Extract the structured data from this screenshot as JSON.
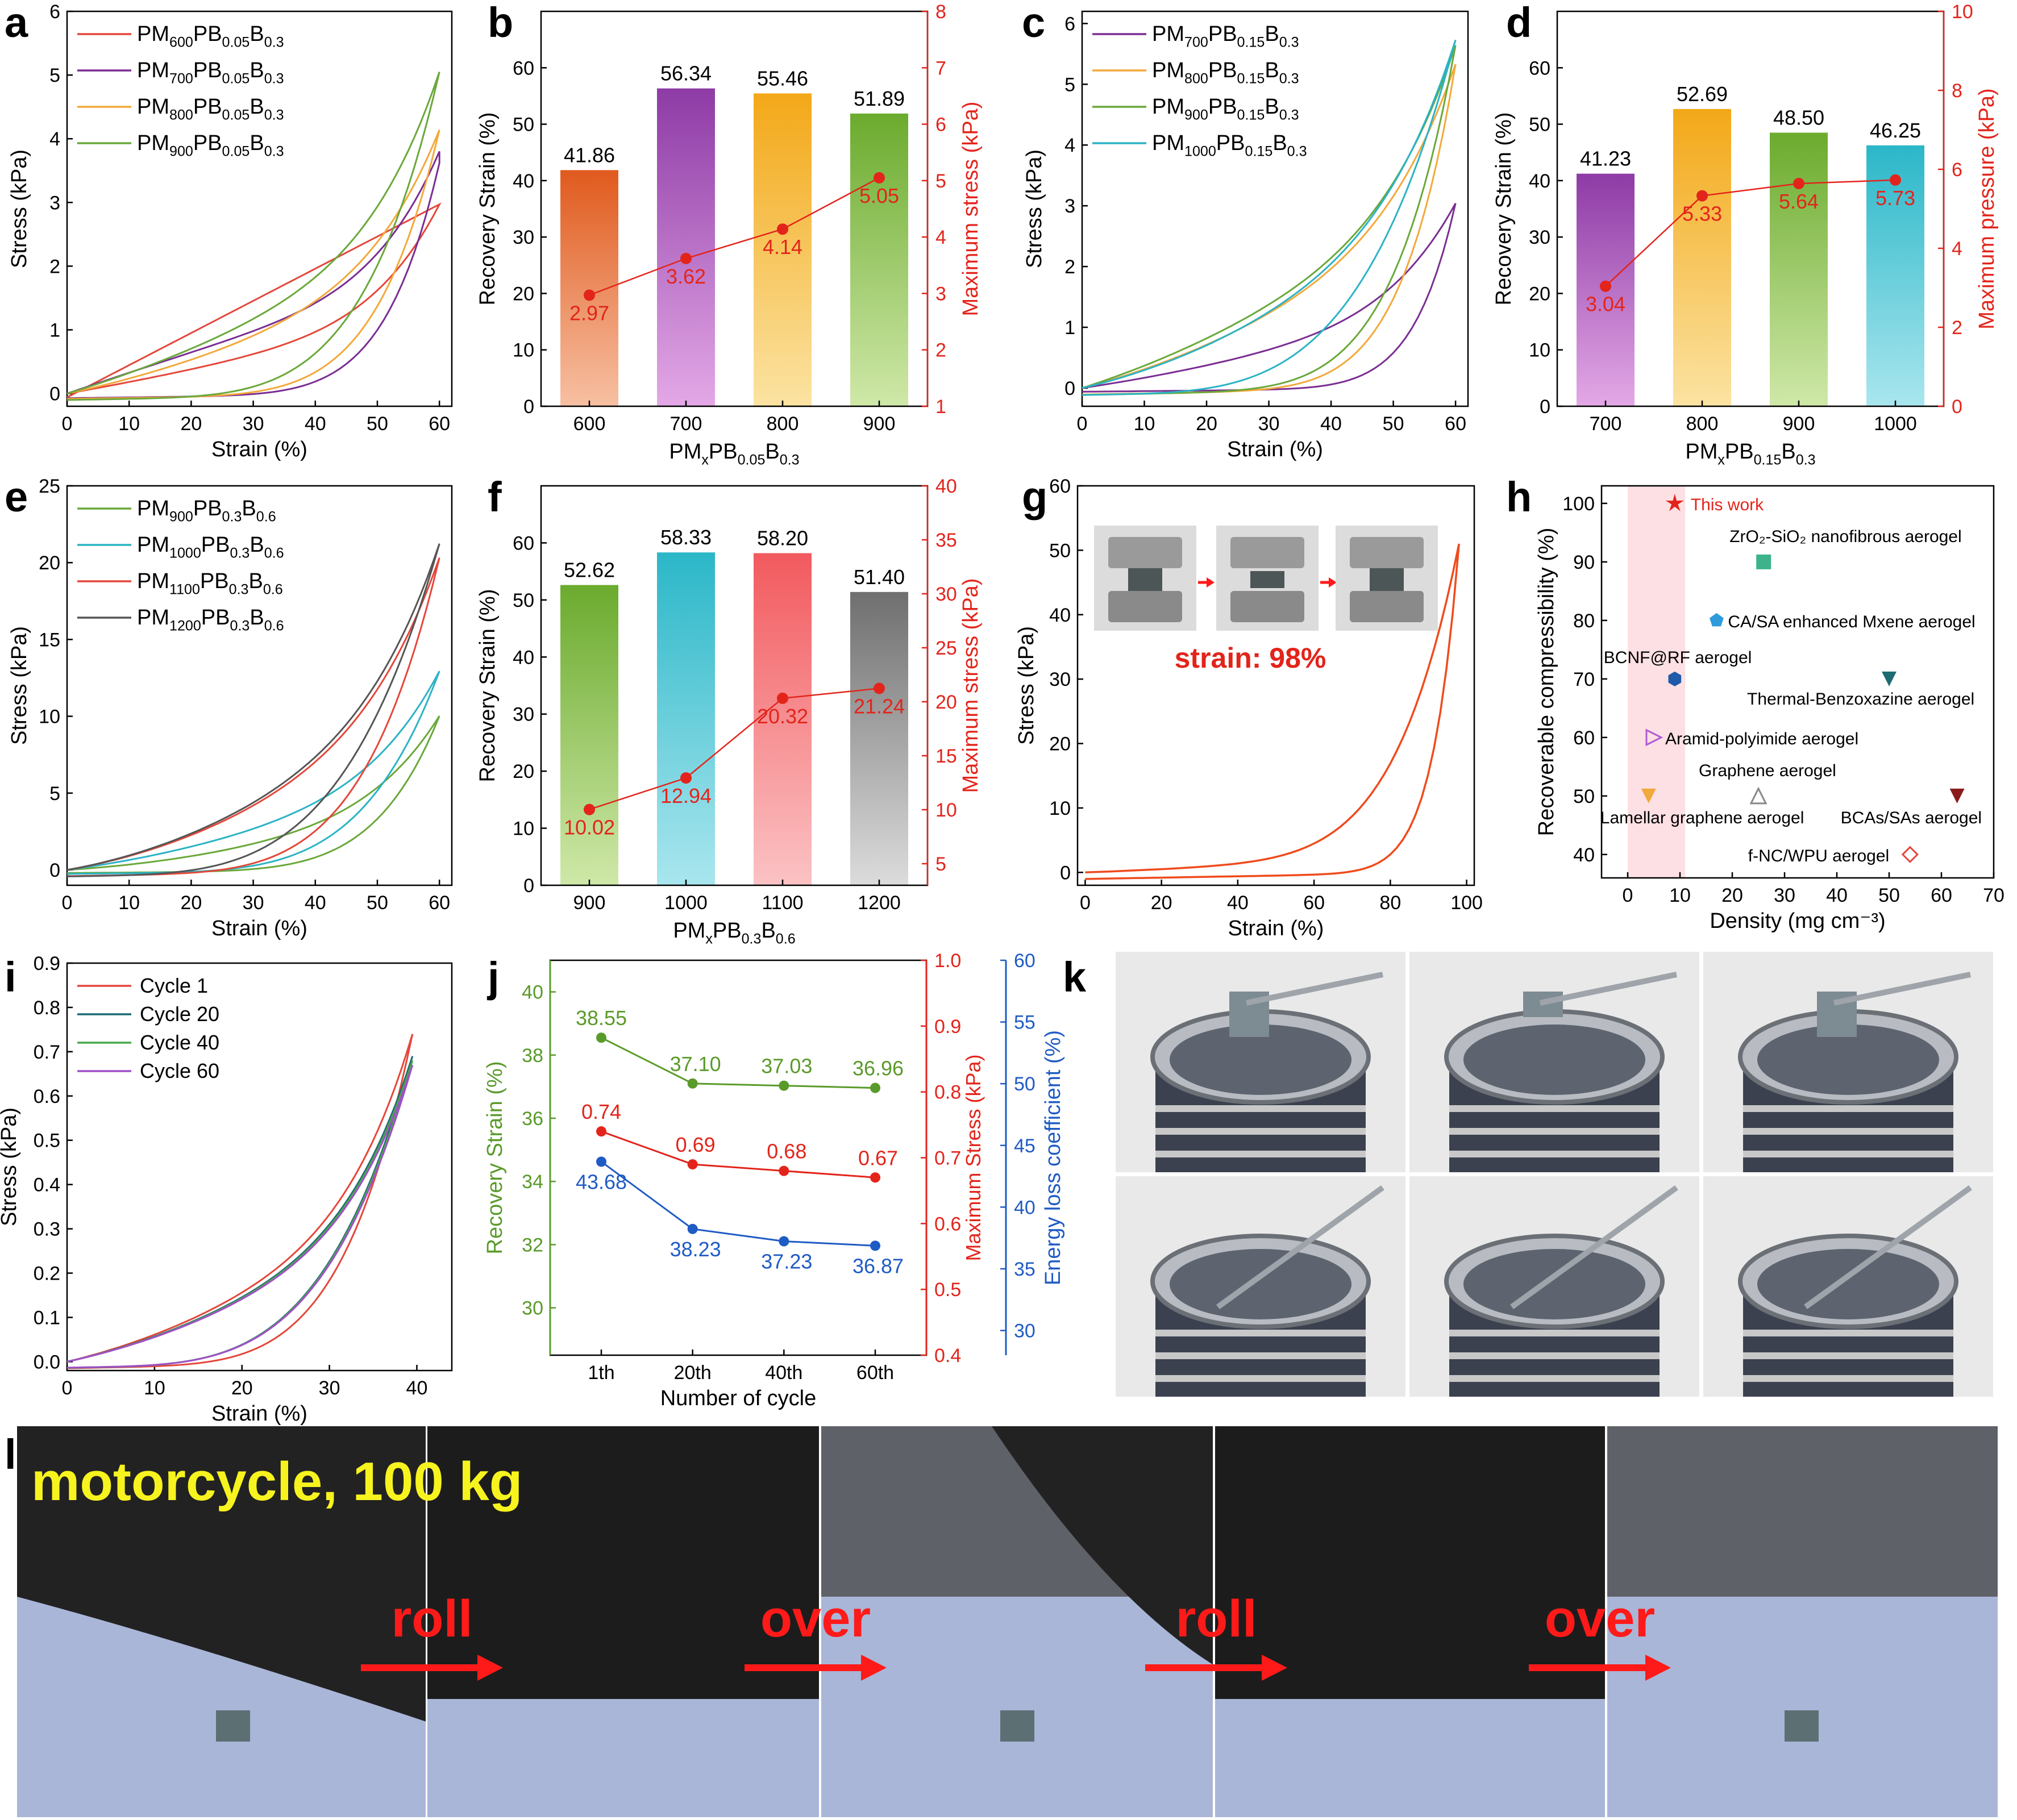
{
  "panel_letters": [
    "a",
    "b",
    "c",
    "d",
    "e",
    "f",
    "g",
    "h",
    "i",
    "j",
    "k",
    "l"
  ],
  "chart_data": [
    {
      "panel": "a",
      "type": "line",
      "xlabel": "Strain (%)",
      "ylabel": "Stress (kPa)",
      "xlim": [
        0,
        62
      ],
      "ylim": [
        -0.2,
        6
      ],
      "xticks": [
        0,
        10,
        20,
        30,
        40,
        50,
        60
      ],
      "yticks": [
        0,
        1,
        2,
        3,
        4,
        5,
        6
      ],
      "legend_placement": "top-left",
      "series": [
        {
          "name": "PM600PB0.05B0.3",
          "label": {
            "base": "PM",
            "sub1": "600",
            "mid": "PB",
            "sub2": "0.05",
            "end": "B",
            "sub3": "0.3"
          },
          "color": "#e4473a",
          "max_strain": 60,
          "max_stress": 2.97
        },
        {
          "name": "PM700PB0.05B0.3",
          "label": {
            "base": "PM",
            "sub1": "700",
            "mid": "PB",
            "sub2": "0.05",
            "end": "B",
            "sub3": "0.3"
          },
          "color": "#7a2e92",
          "max_strain": 60,
          "max_stress": 3.62
        },
        {
          "name": "PM800PB0.05B0.3",
          "label": {
            "base": "PM",
            "sub1": "800",
            "mid": "PB",
            "sub2": "0.05",
            "end": "B",
            "sub3": "0.3"
          },
          "color": "#f2a93b",
          "max_strain": 60,
          "max_stress": 4.14
        },
        {
          "name": "PM900PB0.05B0.3",
          "label": {
            "base": "PM",
            "sub1": "900",
            "mid": "PB",
            "sub2": "0.05",
            "end": "B",
            "sub3": "0.3"
          },
          "color": "#6aa83a",
          "max_strain": 60,
          "max_stress": 5.05
        }
      ]
    },
    {
      "panel": "b",
      "type": "bar",
      "xlabel": {
        "base": "PM",
        "sub1": "x",
        "mid": "PB",
        "sub2": "0.05",
        "end": "B",
        "sub3": "0.3"
      },
      "ylabel": "Recovery Strain (%)",
      "ylabel2": "Maximum stress (kPa)",
      "ylim": [
        0,
        70
      ],
      "ylim2": [
        1,
        8
      ],
      "yticks": [
        0,
        10,
        20,
        30,
        40,
        50,
        60
      ],
      "yticks2": [
        1,
        2,
        3,
        4,
        5,
        6,
        7,
        8
      ],
      "categories": [
        "600",
        "700",
        "800",
        "900"
      ],
      "values": [
        41.86,
        56.34,
        55.46,
        51.89
      ],
      "value_labels": [
        "41.86",
        "56.34",
        "55.46",
        "51.89"
      ],
      "bar_colors": [
        [
          "#e05a1e",
          "#f7c0a2"
        ],
        [
          "#8e3ba6",
          "#e3a8e6"
        ],
        [
          "#f3a818",
          "#fbe3a2"
        ],
        [
          "#6bab2e",
          "#cfe8a8"
        ]
      ],
      "line": {
        "values": [
          2.97,
          3.62,
          4.14,
          5.05
        ],
        "labels": [
          "2.97",
          "3.62",
          "4.14",
          "5.05"
        ],
        "color": "#e3241b"
      }
    },
    {
      "panel": "c",
      "type": "line",
      "xlabel": "Strain (%)",
      "ylabel": "Stress (kPa)",
      "xlim": [
        0,
        62
      ],
      "ylim": [
        -0.3,
        6.2
      ],
      "xticks": [
        0,
        10,
        20,
        30,
        40,
        50,
        60
      ],
      "yticks": [
        0,
        1,
        2,
        3,
        4,
        5,
        6
      ],
      "legend_placement": "top-left",
      "series": [
        {
          "name": "PM700PB0.15B0.3",
          "label": {
            "base": "PM",
            "sub1": "700",
            "mid": "PB",
            "sub2": "0.15",
            "end": "B",
            "sub3": "0.3"
          },
          "color": "#7a2e92",
          "max_strain": 60,
          "max_stress": 3.04
        },
        {
          "name": "PM800PB0.15B0.3",
          "label": {
            "base": "PM",
            "sub1": "800",
            "mid": "PB",
            "sub2": "0.15",
            "end": "B",
            "sub3": "0.3"
          },
          "color": "#f2a93b",
          "max_strain": 60,
          "max_stress": 5.33
        },
        {
          "name": "PM900PB0.15B0.3",
          "label": {
            "base": "PM",
            "sub1": "900",
            "mid": "PB",
            "sub2": "0.15",
            "end": "B",
            "sub3": "0.3"
          },
          "color": "#6aa83a",
          "max_strain": 60,
          "max_stress": 5.64
        },
        {
          "name": "PM1000PB0.15B0.3",
          "label": {
            "base": "PM",
            "sub1": "1000",
            "mid": "PB",
            "sub2": "0.15",
            "end": "B",
            "sub3": "0.3"
          },
          "color": "#2bb3c5",
          "max_strain": 60,
          "max_stress": 5.73
        }
      ]
    },
    {
      "panel": "d",
      "type": "bar",
      "xlabel": {
        "base": "PM",
        "sub1": "x",
        "mid": "PB",
        "sub2": "0.15",
        "end": "B",
        "sub3": "0.3"
      },
      "ylabel": "Recovery Strain (%)",
      "ylabel2": "Maximum pressure (kPa)",
      "ylim": [
        0,
        70
      ],
      "ylim2": [
        0,
        10
      ],
      "yticks": [
        0,
        10,
        20,
        30,
        40,
        50,
        60
      ],
      "yticks2": [
        0,
        2,
        4,
        6,
        8,
        10
      ],
      "categories": [
        "700",
        "800",
        "900",
        "1000"
      ],
      "values": [
        41.23,
        52.69,
        48.5,
        46.25
      ],
      "value_labels": [
        "41.23",
        "52.69",
        "48.50",
        "46.25"
      ],
      "bar_colors": [
        [
          "#8e3ba6",
          "#e3a8e6"
        ],
        [
          "#f3a818",
          "#fbe3a2"
        ],
        [
          "#6bab2e",
          "#cfe8a8"
        ],
        [
          "#2bb7c8",
          "#a9e6ee"
        ]
      ],
      "line": {
        "values": [
          3.04,
          5.33,
          5.64,
          5.73
        ],
        "labels": [
          "3.04",
          "5.33",
          "5.64",
          "5.73"
        ],
        "color": "#e3241b"
      }
    },
    {
      "panel": "e",
      "type": "line",
      "xlabel": "Strain (%)",
      "ylabel": "Stress (kPa)",
      "xlim": [
        0,
        62
      ],
      "ylim": [
        -1,
        25
      ],
      "xticks": [
        0,
        10,
        20,
        30,
        40,
        50,
        60
      ],
      "yticks": [
        0,
        5,
        10,
        15,
        20,
        25
      ],
      "legend_placement": "top-left",
      "series": [
        {
          "name": "PM900PB0.3B0.6",
          "label": {
            "base": "PM",
            "sub1": "900",
            "mid": "PB",
            "sub2": "0.3",
            "end": "B",
            "sub3": "0.6"
          },
          "color": "#6aa83a",
          "max_strain": 60,
          "max_stress": 10.02
        },
        {
          "name": "PM1000PB0.3B0.6",
          "label": {
            "base": "PM",
            "sub1": "1000",
            "mid": "PB",
            "sub2": "0.3",
            "end": "B",
            "sub3": "0.6"
          },
          "color": "#2bb3c5",
          "max_strain": 60,
          "max_stress": 12.94
        },
        {
          "name": "PM1100PB0.3B0.6",
          "label": {
            "base": "PM",
            "sub1": "1100",
            "mid": "PB",
            "sub2": "0.3",
            "end": "B",
            "sub3": "0.6"
          },
          "color": "#e4473a",
          "max_strain": 60,
          "max_stress": 20.32
        },
        {
          "name": "PM1200PB0.3B0.6",
          "label": {
            "base": "PM",
            "sub1": "1200",
            "mid": "PB",
            "sub2": "0.3",
            "end": "B",
            "sub3": "0.6"
          },
          "color": "#555555",
          "max_strain": 60,
          "max_stress": 21.24
        }
      ]
    },
    {
      "panel": "f",
      "type": "bar",
      "xlabel": {
        "base": "PM",
        "sub1": "x",
        "mid": "PB",
        "sub2": "0.3",
        "end": "B",
        "sub3": "0.6"
      },
      "ylabel": "Recovery Strain (%)",
      "ylabel2": "Maximum stress (kPa)",
      "ylim": [
        0,
        70
      ],
      "ylim2": [
        3,
        40
      ],
      "yticks": [
        0,
        10,
        20,
        30,
        40,
        50,
        60
      ],
      "yticks2": [
        5,
        10,
        15,
        20,
        25,
        30,
        35,
        40
      ],
      "categories": [
        "900",
        "1000",
        "1100",
        "1200"
      ],
      "values": [
        52.62,
        58.33,
        58.2,
        51.4
      ],
      "value_labels": [
        "52.62",
        "58.33",
        "58.20",
        "51.40"
      ],
      "bar_colors": [
        [
          "#6bab2e",
          "#cfe8a8"
        ],
        [
          "#2bb7c8",
          "#a9e6ee"
        ],
        [
          "#f25a5e",
          "#fbc2c4"
        ],
        [
          "#6f6f6f",
          "#dcdcdc"
        ]
      ],
      "line": {
        "values": [
          10.02,
          12.94,
          20.32,
          21.24
        ],
        "labels": [
          "10.02",
          "12.94",
          "20.32",
          "21.24"
        ],
        "color": "#e3241b"
      }
    },
    {
      "panel": "g",
      "type": "line",
      "xlabel": "Strain (%)",
      "ylabel": "Stress (kPa)",
      "xlim": [
        -2,
        102
      ],
      "ylim": [
        -2,
        60
      ],
      "xticks": [
        0,
        20,
        40,
        60,
        80,
        100
      ],
      "yticks": [
        0,
        10,
        20,
        30,
        40,
        50,
        60
      ],
      "annotation": "strain: 98%",
      "series": [
        {
          "max_strain": 98,
          "max_stress": 51,
          "color": "#ef4b1c"
        }
      ]
    },
    {
      "panel": "h",
      "type": "scatter",
      "xlabel": "Density (mg cm⁻³)",
      "ylabel": "Recoverable compressibility (%)",
      "xlim": [
        -5,
        70
      ],
      "ylim": [
        36,
        103
      ],
      "xticks": [
        0,
        10,
        20,
        30,
        40,
        50,
        60,
        70
      ],
      "yticks": [
        40,
        50,
        60,
        70,
        80,
        90,
        100
      ],
      "highlight_band": [
        0,
        11
      ],
      "points": [
        {
          "label": "This work",
          "x": 9,
          "y": 100,
          "color": "#e3241b",
          "marker": "star"
        },
        {
          "label": "ZrO₂-SiO₂ nanofibrous aerogel",
          "x": 26,
          "y": 90,
          "color": "#3cb38a",
          "marker": "square"
        },
        {
          "label": "CA/SA enhanced Mxene aerogel",
          "x": 17,
          "y": 80,
          "color": "#2f9bdc",
          "marker": "pentagon"
        },
        {
          "label": "BCNF@RF aerogel",
          "x": 9,
          "y": 70,
          "color": "#1e5aa8",
          "marker": "hexagon"
        },
        {
          "label": "Thermal-Benzoxazine aerogel",
          "x": 50,
          "y": 70,
          "color": "#1d6b73",
          "marker": "triangle-down"
        },
        {
          "label": "Aramid-polyimide aerogel",
          "x": 5,
          "y": 60,
          "color": "#b25ad6",
          "marker": "triangle-right"
        },
        {
          "label": "Graphene aerogel",
          "x": 25,
          "y": 50,
          "color": "#888888",
          "marker": "triangle-up"
        },
        {
          "label": "Lamellar graphene aerogel",
          "x": 4,
          "y": 50,
          "color": "#f2a93b",
          "marker": "triangle-down"
        },
        {
          "label": "BCAs/SAs aerogel",
          "x": 63,
          "y": 50,
          "color": "#8b1a1a",
          "marker": "triangle-down"
        },
        {
          "label": "f-NC/WPU aerogel",
          "x": 54,
          "y": 40,
          "color": "#e4473a",
          "marker": "diamond"
        }
      ]
    },
    {
      "panel": "i",
      "type": "line",
      "xlabel": "Strain (%)",
      "ylabel": "Stress (kPa)",
      "xlim": [
        0,
        44
      ],
      "ylim": [
        -0.02,
        0.9
      ],
      "xticks": [
        0,
        10,
        20,
        30,
        40
      ],
      "yticks": [
        0.0,
        0.1,
        0.2,
        0.3,
        0.4,
        0.5,
        0.6,
        0.7,
        0.8,
        0.9
      ],
      "legend_placement": "top-left",
      "series": [
        {
          "name": "Cycle 1",
          "color": "#e4473a",
          "max_strain": 39.5,
          "max_stress": 0.74
        },
        {
          "name": "Cycle 20",
          "color": "#1d6b73",
          "max_strain": 39.5,
          "max_stress": 0.69
        },
        {
          "name": "Cycle 40",
          "color": "#4aa84a",
          "max_strain": 39.5,
          "max_stress": 0.68
        },
        {
          "name": "Cycle 60",
          "color": "#a050c8",
          "max_strain": 39.5,
          "max_stress": 0.67
        }
      ]
    },
    {
      "panel": "j",
      "type": "line",
      "xlabel": "Number of cycle",
      "categories": [
        "1th",
        "20th",
        "40th",
        "60th"
      ],
      "axes": [
        {
          "label": "Recovery Strain (%)",
          "color": "#5a9a2a",
          "ylim": [
            28.5,
            41
          ],
          "ticks": [
            30,
            32,
            34,
            36,
            38,
            40
          ]
        },
        {
          "label": "Maximum Stress (kPa)",
          "color": "#e3241b",
          "ylim": [
            0.4,
            1.0
          ],
          "ticks": [
            0.4,
            0.5,
            0.6,
            0.7,
            0.8,
            0.9,
            1.0
          ]
        },
        {
          "label": "Energy loss coefficient (%)",
          "color": "#1f5bc4",
          "ylim": [
            28,
            60
          ],
          "ticks": [
            30,
            35,
            40,
            45,
            50,
            55,
            60
          ]
        }
      ],
      "series": [
        {
          "axis": 0,
          "color": "#5a9a2a",
          "values": [
            38.55,
            37.1,
            37.03,
            36.96
          ],
          "labels": [
            "38.55",
            "37.10",
            "37.03",
            "36.96"
          ]
        },
        {
          "axis": 1,
          "color": "#e3241b",
          "values": [
            0.74,
            0.69,
            0.68,
            0.67
          ],
          "labels": [
            "0.74",
            "0.69",
            "0.68",
            "0.67"
          ]
        },
        {
          "axis": 2,
          "color": "#1f5bc4",
          "values": [
            43.68,
            38.23,
            37.23,
            36.87
          ],
          "labels": [
            "43.68",
            "38.23",
            "37.23",
            "36.87"
          ]
        }
      ]
    }
  ],
  "photos": {
    "g_inset_caption": "strain: 98%",
    "l_title": "motorcycle, 100 kg",
    "l_labels": [
      "roll",
      "over",
      "roll",
      "over"
    ]
  },
  "colors": {
    "axis": "#000000",
    "highlight_band": "#fde0e4",
    "arrow_red": "#ff1a1a",
    "label_yellow": "#f7f31e"
  }
}
